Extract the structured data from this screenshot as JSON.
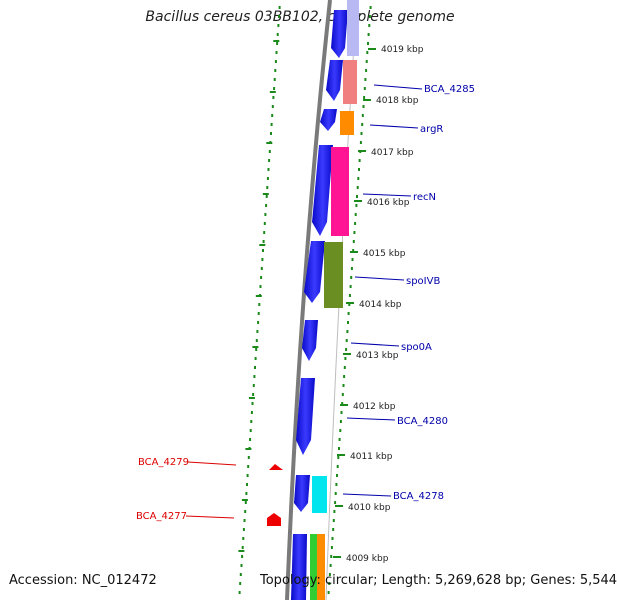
{
  "title": "Bacillus cereus 03BB102, complete genome",
  "footer": {
    "accession": "Accession: NC_012472",
    "topology": "Topology: circular; Length: 5,269,628 bp; Genes: 5,544"
  },
  "ticks": [
    "4019 kbp",
    "4018 kbp",
    "4017 kbp",
    "4016 kbp",
    "4015 kbp",
    "4014 kbp",
    "4013 kbp",
    "4012 kbp",
    "4011 kbp",
    "4010 kbp",
    "4009 kbp"
  ],
  "gene_labels": [
    {
      "text": "BCA_4285",
      "strand": "reverse"
    },
    {
      "text": "argR",
      "strand": "reverse"
    },
    {
      "text": "recN",
      "strand": "reverse"
    },
    {
      "text": "spoIVB",
      "strand": "reverse"
    },
    {
      "text": "spo0A",
      "strand": "reverse"
    },
    {
      "text": "BCA_4280",
      "strand": "reverse"
    },
    {
      "text": "BCA_4278",
      "strand": "reverse"
    },
    {
      "text": "BCA_4279",
      "strand": "forward"
    },
    {
      "text": "BCA_4277",
      "strand": "forward"
    }
  ],
  "colors": {
    "cds": "#1a1aee",
    "backbone": "#808080",
    "gc_dots": "#1a8a1a",
    "label_reverse": "#0000aa",
    "label_forward": "#dd0000",
    "forward_marker": "#ee0000"
  }
}
